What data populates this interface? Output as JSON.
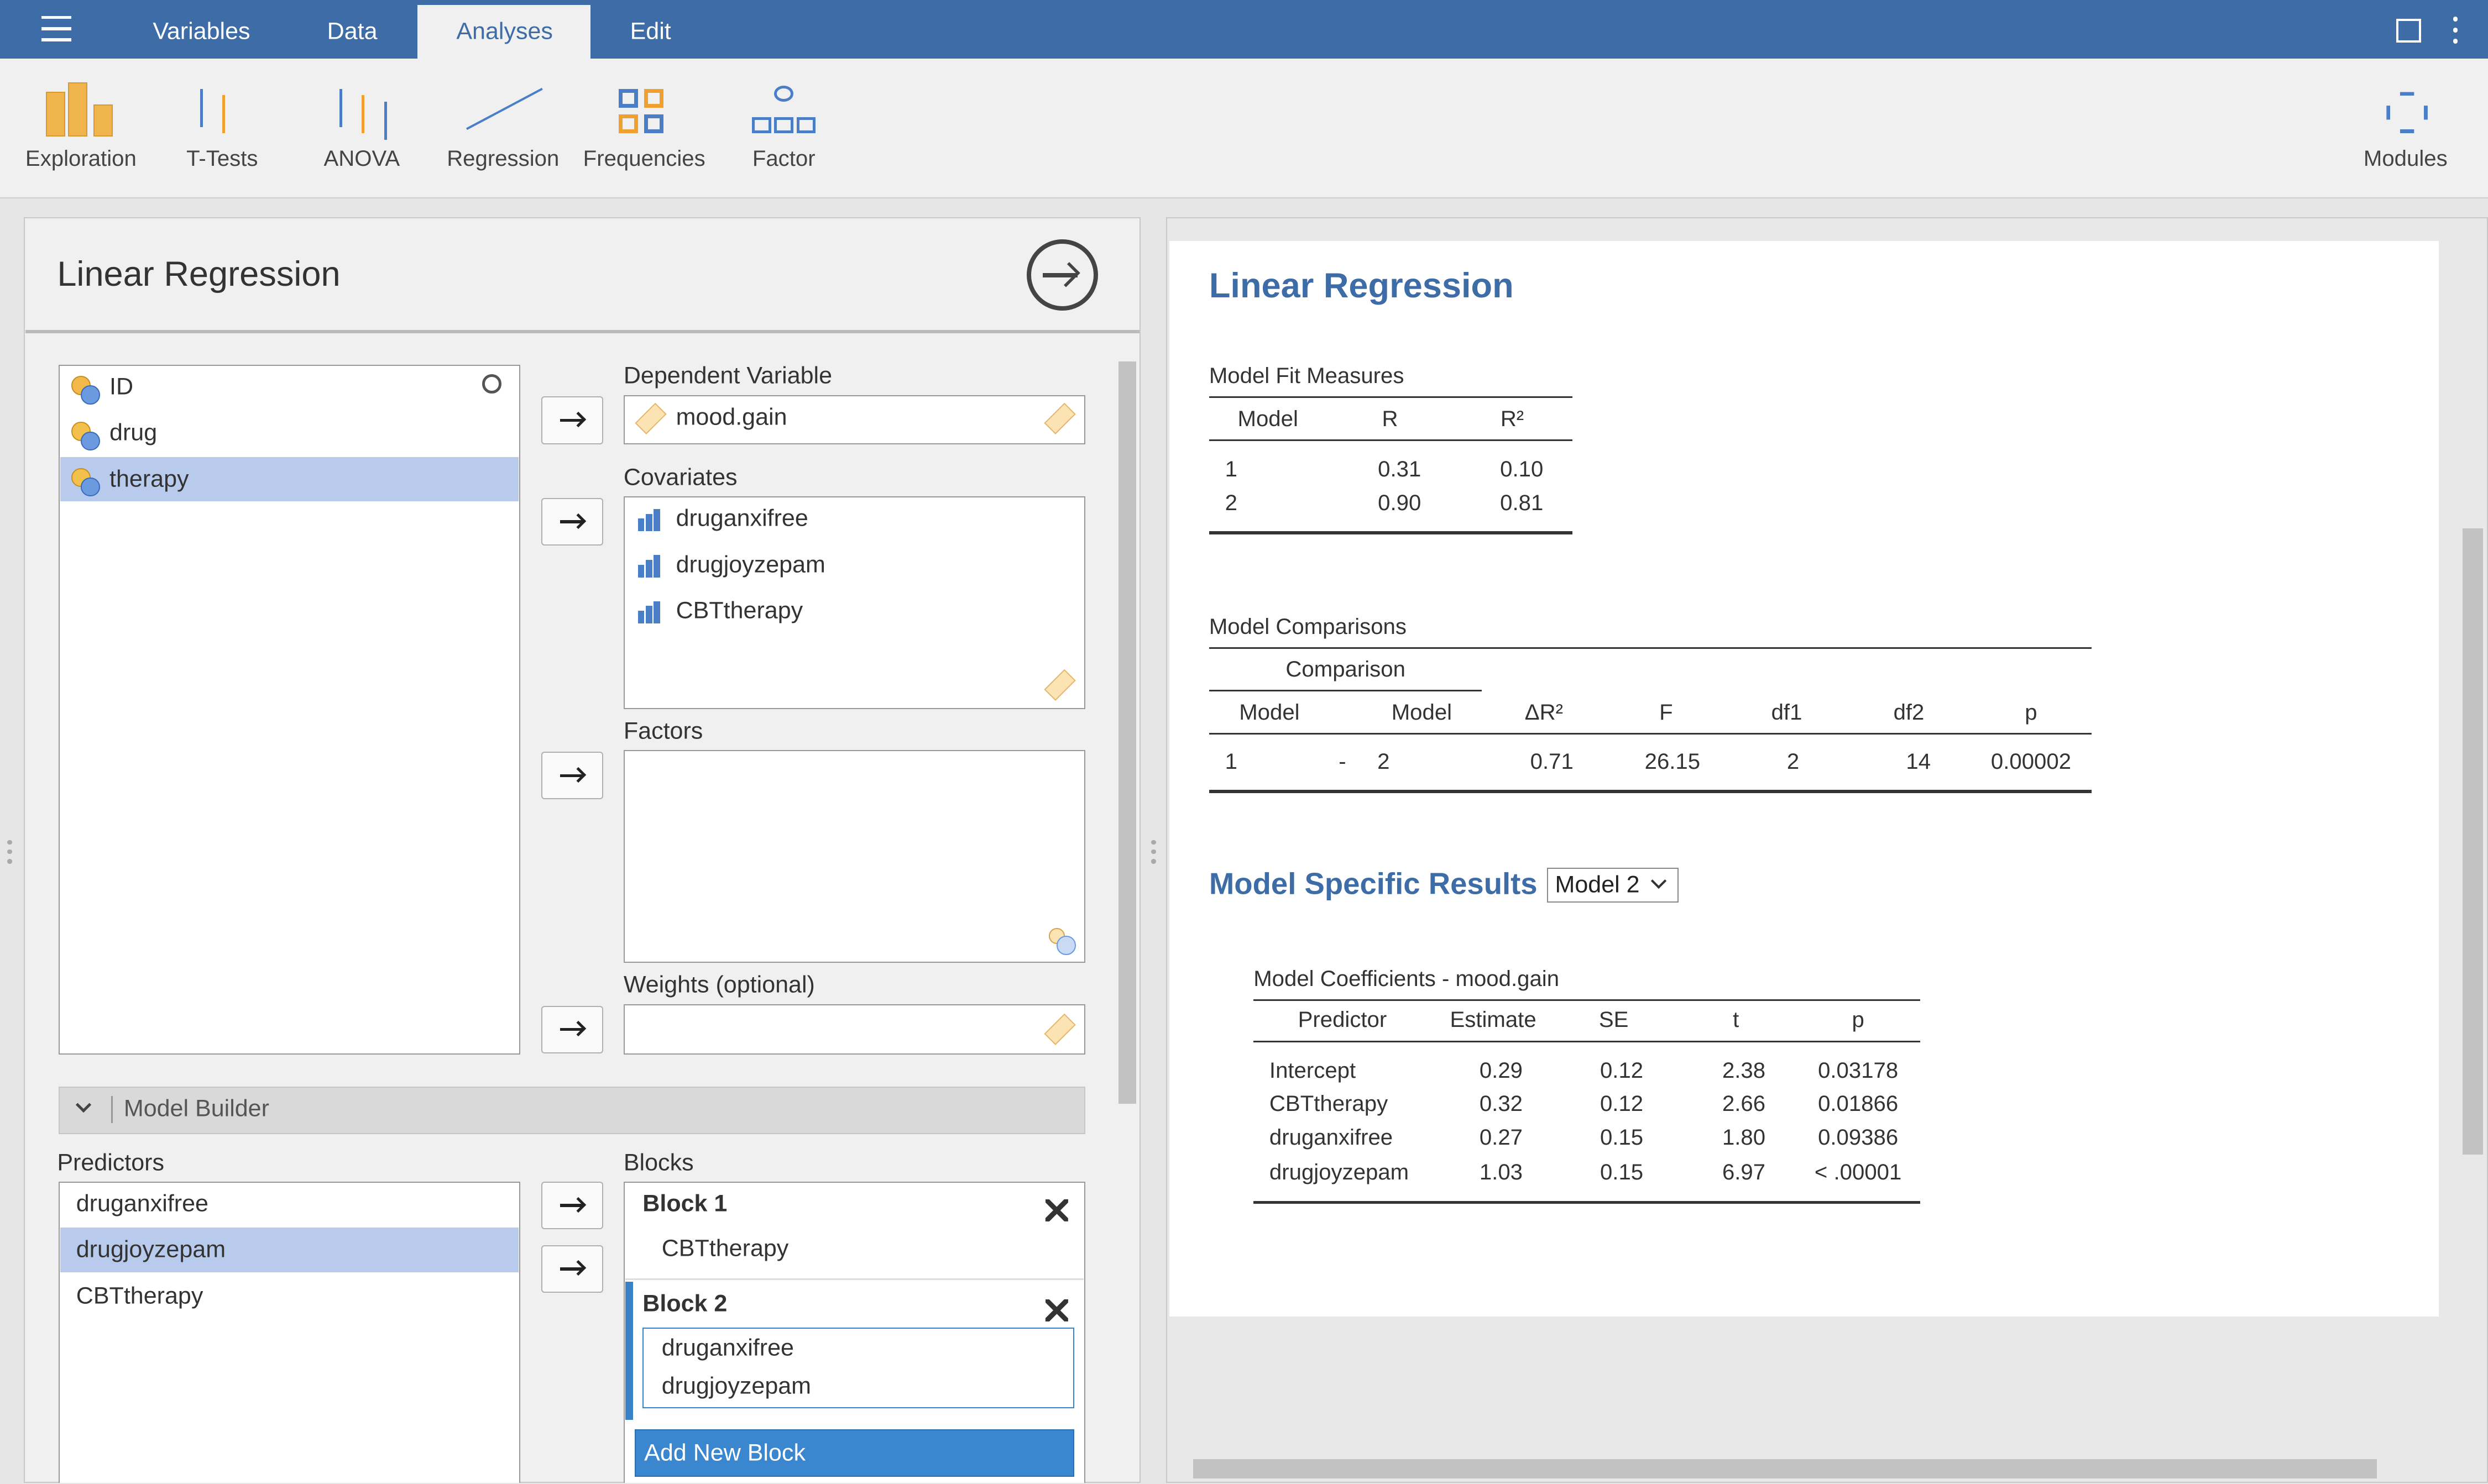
{
  "menu": {
    "tabs": [
      "Variables",
      "Data",
      "Analyses",
      "Edit"
    ]
  },
  "toolbar": {
    "items": [
      "Exploration",
      "T-Tests",
      "ANOVA",
      "Regression",
      "Frequencies",
      "Factor"
    ],
    "modules": "Modules"
  },
  "options": {
    "title": "Linear Regression",
    "variables": [
      "ID",
      "drug",
      "therapy"
    ],
    "dependent_label": "Dependent Variable",
    "dependent": "mood.gain",
    "covariates_label": "Covariates",
    "covariates": [
      "druganxifree",
      "drugjoyzepam",
      "CBTtherapy"
    ],
    "factors_label": "Factors",
    "weights_label": "Weights (optional)",
    "model_builder": "Model Builder",
    "predictors_label": "Predictors",
    "predictors": [
      "druganxifree",
      "drugjoyzepam",
      "CBTtherapy"
    ],
    "blocks_label": "Blocks",
    "blocks": [
      {
        "name": "Block 1",
        "terms": [
          "CBTtherapy"
        ]
      },
      {
        "name": "Block 2",
        "terms": [
          "druganxifree",
          "drugjoyzepam"
        ]
      }
    ],
    "add_block": "Add New Block"
  },
  "results": {
    "title": "Linear Regression",
    "fit": {
      "title": "Model Fit Measures",
      "columns": [
        "Model",
        "R",
        "R²"
      ],
      "rows": [
        [
          "1",
          "0.31",
          "0.10"
        ],
        [
          "2",
          "0.90",
          "0.81"
        ]
      ]
    },
    "comparisons": {
      "title": "Model Comparisons",
      "group": "Comparison",
      "columns": [
        "Model",
        "Model",
        "ΔR²",
        "F",
        "df1",
        "df2",
        "p"
      ],
      "rows": [
        [
          "1",
          "-",
          "2",
          "0.71",
          "26.15",
          "2",
          "14",
          "0.00002"
        ]
      ]
    },
    "specific": "Model Specific Results",
    "model_select": "Model 2",
    "coef": {
      "title": "Model Coefficients - mood.gain",
      "columns": [
        "Predictor",
        "Estimate",
        "SE",
        "t",
        "p"
      ],
      "rows": [
        [
          "Intercept",
          "0.29",
          "0.12",
          "2.38",
          "0.03178"
        ],
        [
          "CBTtherapy",
          "0.32",
          "0.12",
          "2.66",
          "0.01866"
        ],
        [
          "druganxifree",
          "0.27",
          "0.15",
          "1.80",
          "0.09386"
        ],
        [
          "drugjoyzepam",
          "1.03",
          "0.15",
          "6.97",
          "< .00001"
        ]
      ]
    }
  }
}
